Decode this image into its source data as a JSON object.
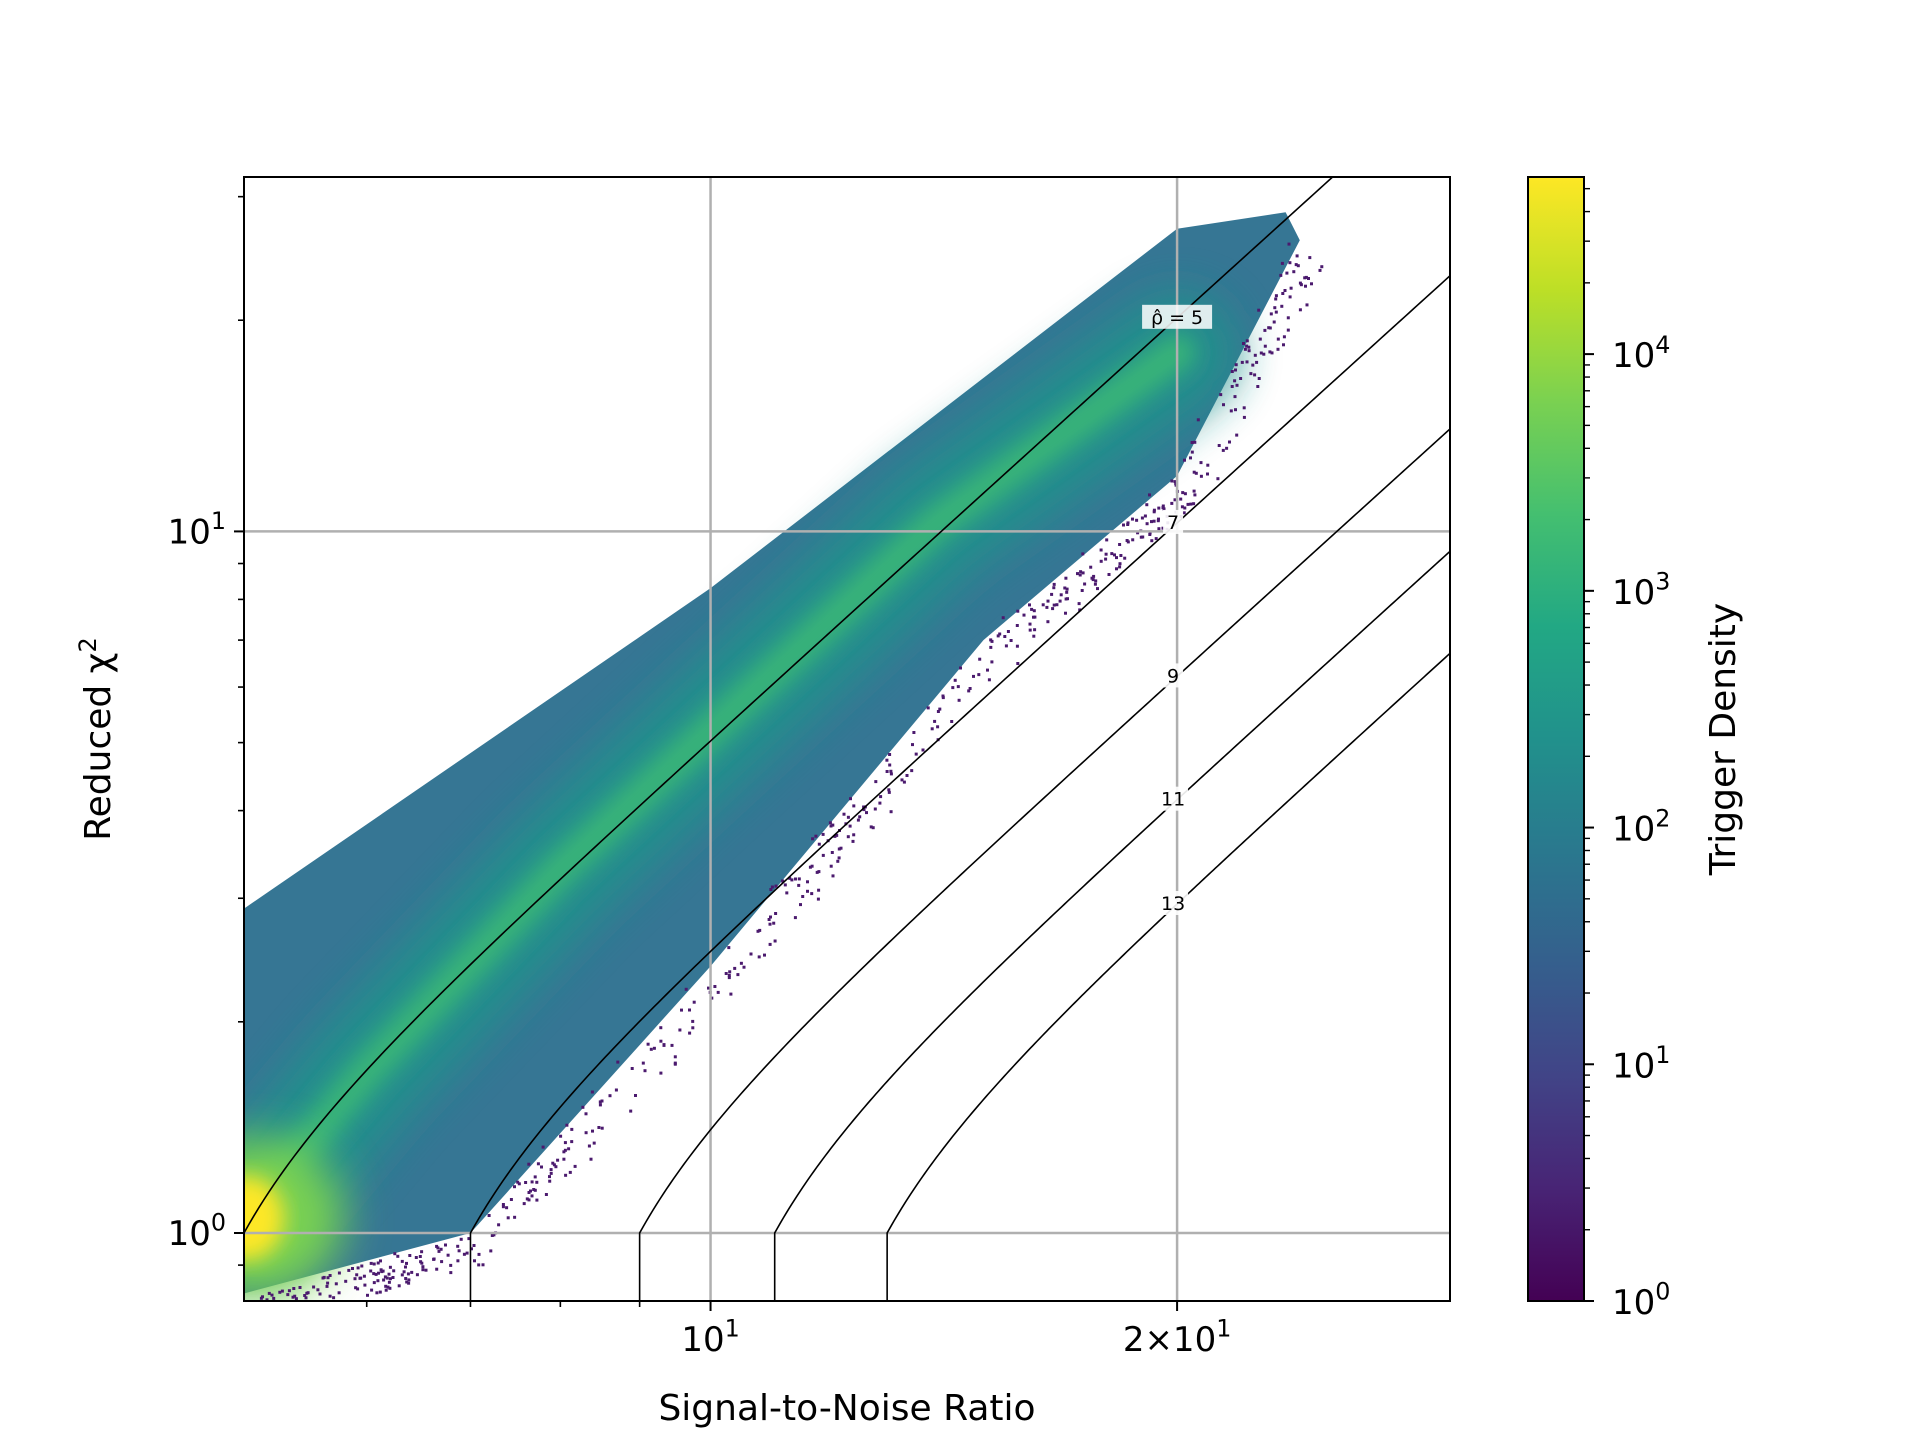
{
  "chart_data": {
    "type": "heatmap",
    "subtype": "hexbin-density-with-contours",
    "xlabel": "Signal-to-Noise Ratio",
    "ylabel": "Reduced χ²",
    "xscale": "log",
    "yscale": "log",
    "xlim": [
      5.0,
      30.0
    ],
    "ylim": [
      0.8,
      32.0
    ],
    "x_ticks": [
      {
        "value": 10,
        "base": "10",
        "exp": "1",
        "label": "10^1"
      },
      {
        "value": 20,
        "base": "2×10",
        "exp": "1",
        "label": "2×10^1"
      }
    ],
    "y_ticks": [
      {
        "value": 1,
        "base": "10",
        "exp": "0",
        "label": "10^0"
      },
      {
        "value": 10,
        "base": "10",
        "exp": "1",
        "label": "10^1"
      }
    ],
    "grid": true,
    "colorbar": {
      "label": "Trigger Density",
      "scale": "log",
      "range": [
        1,
        56000
      ],
      "colormap": "viridis",
      "ticks": [
        {
          "value": 1,
          "base": "10",
          "exp": "0"
        },
        {
          "value": 10,
          "base": "10",
          "exp": "1"
        },
        {
          "value": 100,
          "base": "10",
          "exp": "2"
        },
        {
          "value": 1000,
          "base": "10",
          "exp": "3"
        },
        {
          "value": 10000,
          "base": "10",
          "exp": "4"
        }
      ]
    },
    "contours": [
      {
        "level": 5,
        "label": "ρ̂ = 5"
      },
      {
        "level": 7,
        "label": "7"
      },
      {
        "level": 9,
        "label": "9"
      },
      {
        "level": 11,
        "label": "11"
      },
      {
        "level": 13,
        "label": "13"
      }
    ],
    "density_region": {
      "description_points_upper_edge": [
        [
          5.0,
          2.9
        ],
        [
          10.0,
          8.3
        ],
        [
          20.0,
          27.0
        ],
        [
          23.5,
          28.5
        ]
      ],
      "description_points_lower_edge": [
        [
          5.0,
          0.82
        ],
        [
          7.0,
          1.0
        ],
        [
          10.0,
          2.4
        ],
        [
          15.0,
          7.0
        ],
        [
          20.0,
          12.0
        ],
        [
          24.0,
          26.0
        ]
      ],
      "peak": [
        5.0,
        1.05
      ],
      "ridge_points": [
        [
          5.0,
          1.05
        ],
        [
          6.0,
          1.7
        ],
        [
          8.0,
          3.3
        ],
        [
          10.0,
          5.2
        ],
        [
          14.0,
          10.3
        ],
        [
          20.0,
          18.0
        ]
      ]
    },
    "colors": {
      "contour": "#000000",
      "grid": "#b0b0b0"
    }
  }
}
